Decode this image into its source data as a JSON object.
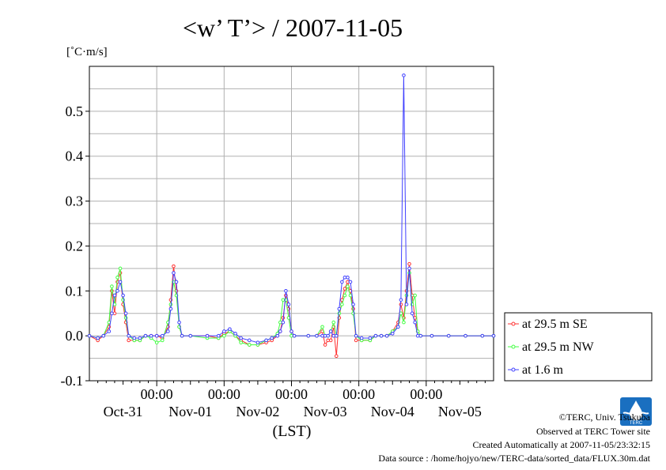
{
  "chart_data": {
    "type": "line",
    "title": "<w’ T’> / 2007-11-05",
    "unit_label": "[˚C·m/s]",
    "xlabel": "(LST)",
    "ylim": [
      -0.1,
      0.6
    ],
    "xlim_hours": [
      0,
      144
    ],
    "yticks": [
      -0.1,
      0.0,
      0.1,
      0.2,
      0.3,
      0.4,
      0.5
    ],
    "ytick_labels": [
      "-0.1",
      "0.0",
      "0.1",
      "0.2",
      "0.3",
      "0.4",
      "0.5"
    ],
    "time_ticks": [
      "00:00",
      "00:00",
      "00:00",
      "00:00",
      "00:00"
    ],
    "date_labels": [
      "Oct-31",
      "Nov-01",
      "Nov-02",
      "Nov-03",
      "Nov-04",
      "Nov-05"
    ],
    "grid": true,
    "legend_position": "right",
    "series": [
      {
        "name": "at 29.5 m SE",
        "color": "#ff3030",
        "points": [
          [
            0,
            0.0
          ],
          [
            3,
            -0.01
          ],
          [
            5,
            0.0
          ],
          [
            7,
            0.02
          ],
          [
            8,
            0.1
          ],
          [
            9,
            0.05
          ],
          [
            10,
            0.12
          ],
          [
            11,
            0.14
          ],
          [
            12,
            0.07
          ],
          [
            13,
            0.03
          ],
          [
            14,
            -0.01
          ],
          [
            16,
            -0.01
          ],
          [
            18,
            -0.01
          ],
          [
            20,
            0.0
          ],
          [
            22,
            0.0
          ],
          [
            24,
            0.0
          ],
          [
            26,
            -0.005
          ],
          [
            28,
            0.02
          ],
          [
            29,
            0.08
          ],
          [
            30,
            0.155
          ],
          [
            31,
            0.1
          ],
          [
            32,
            0.02
          ],
          [
            33,
            0.0
          ],
          [
            36,
            0.0
          ],
          [
            42,
            0.0
          ],
          [
            46,
            -0.005
          ],
          [
            48,
            0.005
          ],
          [
            50,
            0.01
          ],
          [
            52,
            0.0
          ],
          [
            54,
            -0.01
          ],
          [
            57,
            -0.02
          ],
          [
            60,
            -0.02
          ],
          [
            63,
            -0.015
          ],
          [
            65,
            -0.01
          ],
          [
            67,
            0.0
          ],
          [
            68,
            0.01
          ],
          [
            69,
            0.04
          ],
          [
            70,
            0.09
          ],
          [
            71,
            0.06
          ],
          [
            72,
            0.01
          ],
          [
            73,
            0.0
          ],
          [
            78,
            0.0
          ],
          [
            81,
            0.0
          ],
          [
            83,
            0.01
          ],
          [
            84,
            -0.02
          ],
          [
            85,
            -0.01
          ],
          [
            86,
            -0.01
          ],
          [
            87,
            0.02
          ],
          [
            88,
            -0.045
          ],
          [
            89,
            0.04
          ],
          [
            90,
            0.08
          ],
          [
            91,
            0.105
          ],
          [
            92,
            0.12
          ],
          [
            93,
            0.1
          ],
          [
            94,
            0.06
          ],
          [
            95,
            -0.01
          ],
          [
            97,
            -0.01
          ],
          [
            100,
            -0.01
          ],
          [
            102,
            0.0
          ],
          [
            104,
            0.0
          ],
          [
            106,
            0.0
          ],
          [
            108,
            0.01
          ],
          [
            110,
            0.03
          ],
          [
            111,
            0.07
          ],
          [
            112,
            0.04
          ],
          [
            113,
            0.1
          ],
          [
            114,
            0.16
          ],
          [
            115,
            0.09
          ],
          [
            116,
            0.04
          ],
          [
            117,
            0.01
          ],
          [
            118,
            0.0
          ],
          [
            122,
            0.0
          ],
          [
            128,
            0.0
          ],
          [
            134,
            0.0
          ],
          [
            140,
            0.0
          ],
          [
            144,
            0.0
          ]
        ]
      },
      {
        "name": "at 29.5 m NW",
        "color": "#40ff40",
        "points": [
          [
            0,
            0.0
          ],
          [
            3,
            -0.005
          ],
          [
            5,
            0.0
          ],
          [
            7,
            0.03
          ],
          [
            8,
            0.11
          ],
          [
            9,
            0.07
          ],
          [
            10,
            0.13
          ],
          [
            11,
            0.15
          ],
          [
            12,
            0.08
          ],
          [
            13,
            0.04
          ],
          [
            14,
            0.0
          ],
          [
            16,
            -0.01
          ],
          [
            18,
            -0.01
          ],
          [
            20,
            0.0
          ],
          [
            22,
            -0.005
          ],
          [
            24,
            -0.015
          ],
          [
            26,
            -0.01
          ],
          [
            28,
            0.03
          ],
          [
            29,
            0.07
          ],
          [
            30,
            0.12
          ],
          [
            31,
            0.09
          ],
          [
            32,
            0.02
          ],
          [
            33,
            0.0
          ],
          [
            36,
            0.0
          ],
          [
            42,
            -0.005
          ],
          [
            46,
            -0.005
          ],
          [
            48,
            0.0
          ],
          [
            50,
            0.01
          ],
          [
            52,
            0.0
          ],
          [
            54,
            -0.015
          ],
          [
            57,
            -0.02
          ],
          [
            60,
            -0.02
          ],
          [
            63,
            -0.01
          ],
          [
            65,
            -0.005
          ],
          [
            67,
            0.005
          ],
          [
            68,
            0.03
          ],
          [
            69,
            0.08
          ],
          [
            70,
            0.08
          ],
          [
            71,
            0.04
          ],
          [
            72,
            0.0
          ],
          [
            73,
            0.0
          ],
          [
            78,
            0.0
          ],
          [
            81,
            0.0
          ],
          [
            83,
            0.02
          ],
          [
            84,
            0.0
          ],
          [
            85,
            0.0
          ],
          [
            86,
            0.01
          ],
          [
            87,
            0.03
          ],
          [
            88,
            0.0
          ],
          [
            89,
            0.05
          ],
          [
            90,
            0.07
          ],
          [
            91,
            0.09
          ],
          [
            92,
            0.11
          ],
          [
            93,
            0.09
          ],
          [
            94,
            0.05
          ],
          [
            95,
            0.0
          ],
          [
            97,
            -0.01
          ],
          [
            100,
            -0.01
          ],
          [
            102,
            0.0
          ],
          [
            104,
            0.0
          ],
          [
            106,
            0.0
          ],
          [
            108,
            0.01
          ],
          [
            110,
            0.02
          ],
          [
            111,
            0.05
          ],
          [
            112,
            0.03
          ],
          [
            113,
            0.09
          ],
          [
            114,
            0.14
          ],
          [
            115,
            0.07
          ],
          [
            116,
            0.09
          ],
          [
            117,
            0.01
          ],
          [
            118,
            0.0
          ],
          [
            122,
            0.0
          ],
          [
            128,
            0.0
          ],
          [
            134,
            0.0
          ],
          [
            140,
            0.0
          ],
          [
            144,
            0.0
          ]
        ]
      },
      {
        "name": "at 1.6 m",
        "color": "#4040ff",
        "points": [
          [
            0,
            0.0
          ],
          [
            3,
            -0.005
          ],
          [
            5,
            0.0
          ],
          [
            7,
            0.01
          ],
          [
            8,
            0.05
          ],
          [
            9,
            0.09
          ],
          [
            10,
            0.1
          ],
          [
            11,
            0.12
          ],
          [
            12,
            0.09
          ],
          [
            13,
            0.05
          ],
          [
            14,
            0.0
          ],
          [
            16,
            -0.005
          ],
          [
            18,
            -0.005
          ],
          [
            20,
            0.0
          ],
          [
            22,
            0.0
          ],
          [
            24,
            0.0
          ],
          [
            26,
            0.0
          ],
          [
            28,
            0.01
          ],
          [
            29,
            0.06
          ],
          [
            30,
            0.14
          ],
          [
            31,
            0.12
          ],
          [
            32,
            0.03
          ],
          [
            33,
            0.0
          ],
          [
            36,
            0.0
          ],
          [
            42,
            0.0
          ],
          [
            46,
            0.0
          ],
          [
            48,
            0.01
          ],
          [
            50,
            0.015
          ],
          [
            52,
            0.005
          ],
          [
            54,
            -0.005
          ],
          [
            57,
            -0.01
          ],
          [
            60,
            -0.015
          ],
          [
            63,
            -0.01
          ],
          [
            65,
            -0.005
          ],
          [
            67,
            0.0
          ],
          [
            68,
            0.01
          ],
          [
            69,
            0.03
          ],
          [
            70,
            0.1
          ],
          [
            71,
            0.07
          ],
          [
            72,
            0.01
          ],
          [
            73,
            0.0
          ],
          [
            78,
            0.0
          ],
          [
            81,
            0.0
          ],
          [
            83,
            0.0
          ],
          [
            84,
            0.0
          ],
          [
            85,
            0.0
          ],
          [
            86,
            0.01
          ],
          [
            87,
            0.0
          ],
          [
            88,
            0.0
          ],
          [
            89,
            0.06
          ],
          [
            90,
            0.12
          ],
          [
            91,
            0.13
          ],
          [
            92,
            0.13
          ],
          [
            93,
            0.12
          ],
          [
            94,
            0.07
          ],
          [
            95,
            0.0
          ],
          [
            97,
            -0.005
          ],
          [
            100,
            -0.005
          ],
          [
            102,
            0.0
          ],
          [
            104,
            0.0
          ],
          [
            106,
            0.0
          ],
          [
            108,
            0.005
          ],
          [
            110,
            0.02
          ],
          [
            111,
            0.08
          ],
          [
            112,
            0.58
          ],
          [
            113,
            0.07
          ],
          [
            114,
            0.15
          ],
          [
            115,
            0.05
          ],
          [
            116,
            0.03
          ],
          [
            117,
            0.0
          ],
          [
            118,
            0.0
          ],
          [
            122,
            0.0
          ],
          [
            128,
            0.0
          ],
          [
            134,
            0.0
          ],
          [
            140,
            0.0
          ],
          [
            144,
            0.0
          ]
        ]
      }
    ]
  },
  "credits": {
    "copyright": "©TERC, Univ. Tsukuba",
    "observed": "Observed at TERC Tower site",
    "created": "Created Automatically at 2007-11-05/23:32:15",
    "source": "Data source : /home/hojyo/new/TERC-data/sorted_data/FLUX.30m.dat"
  },
  "logo_text": "TERC"
}
